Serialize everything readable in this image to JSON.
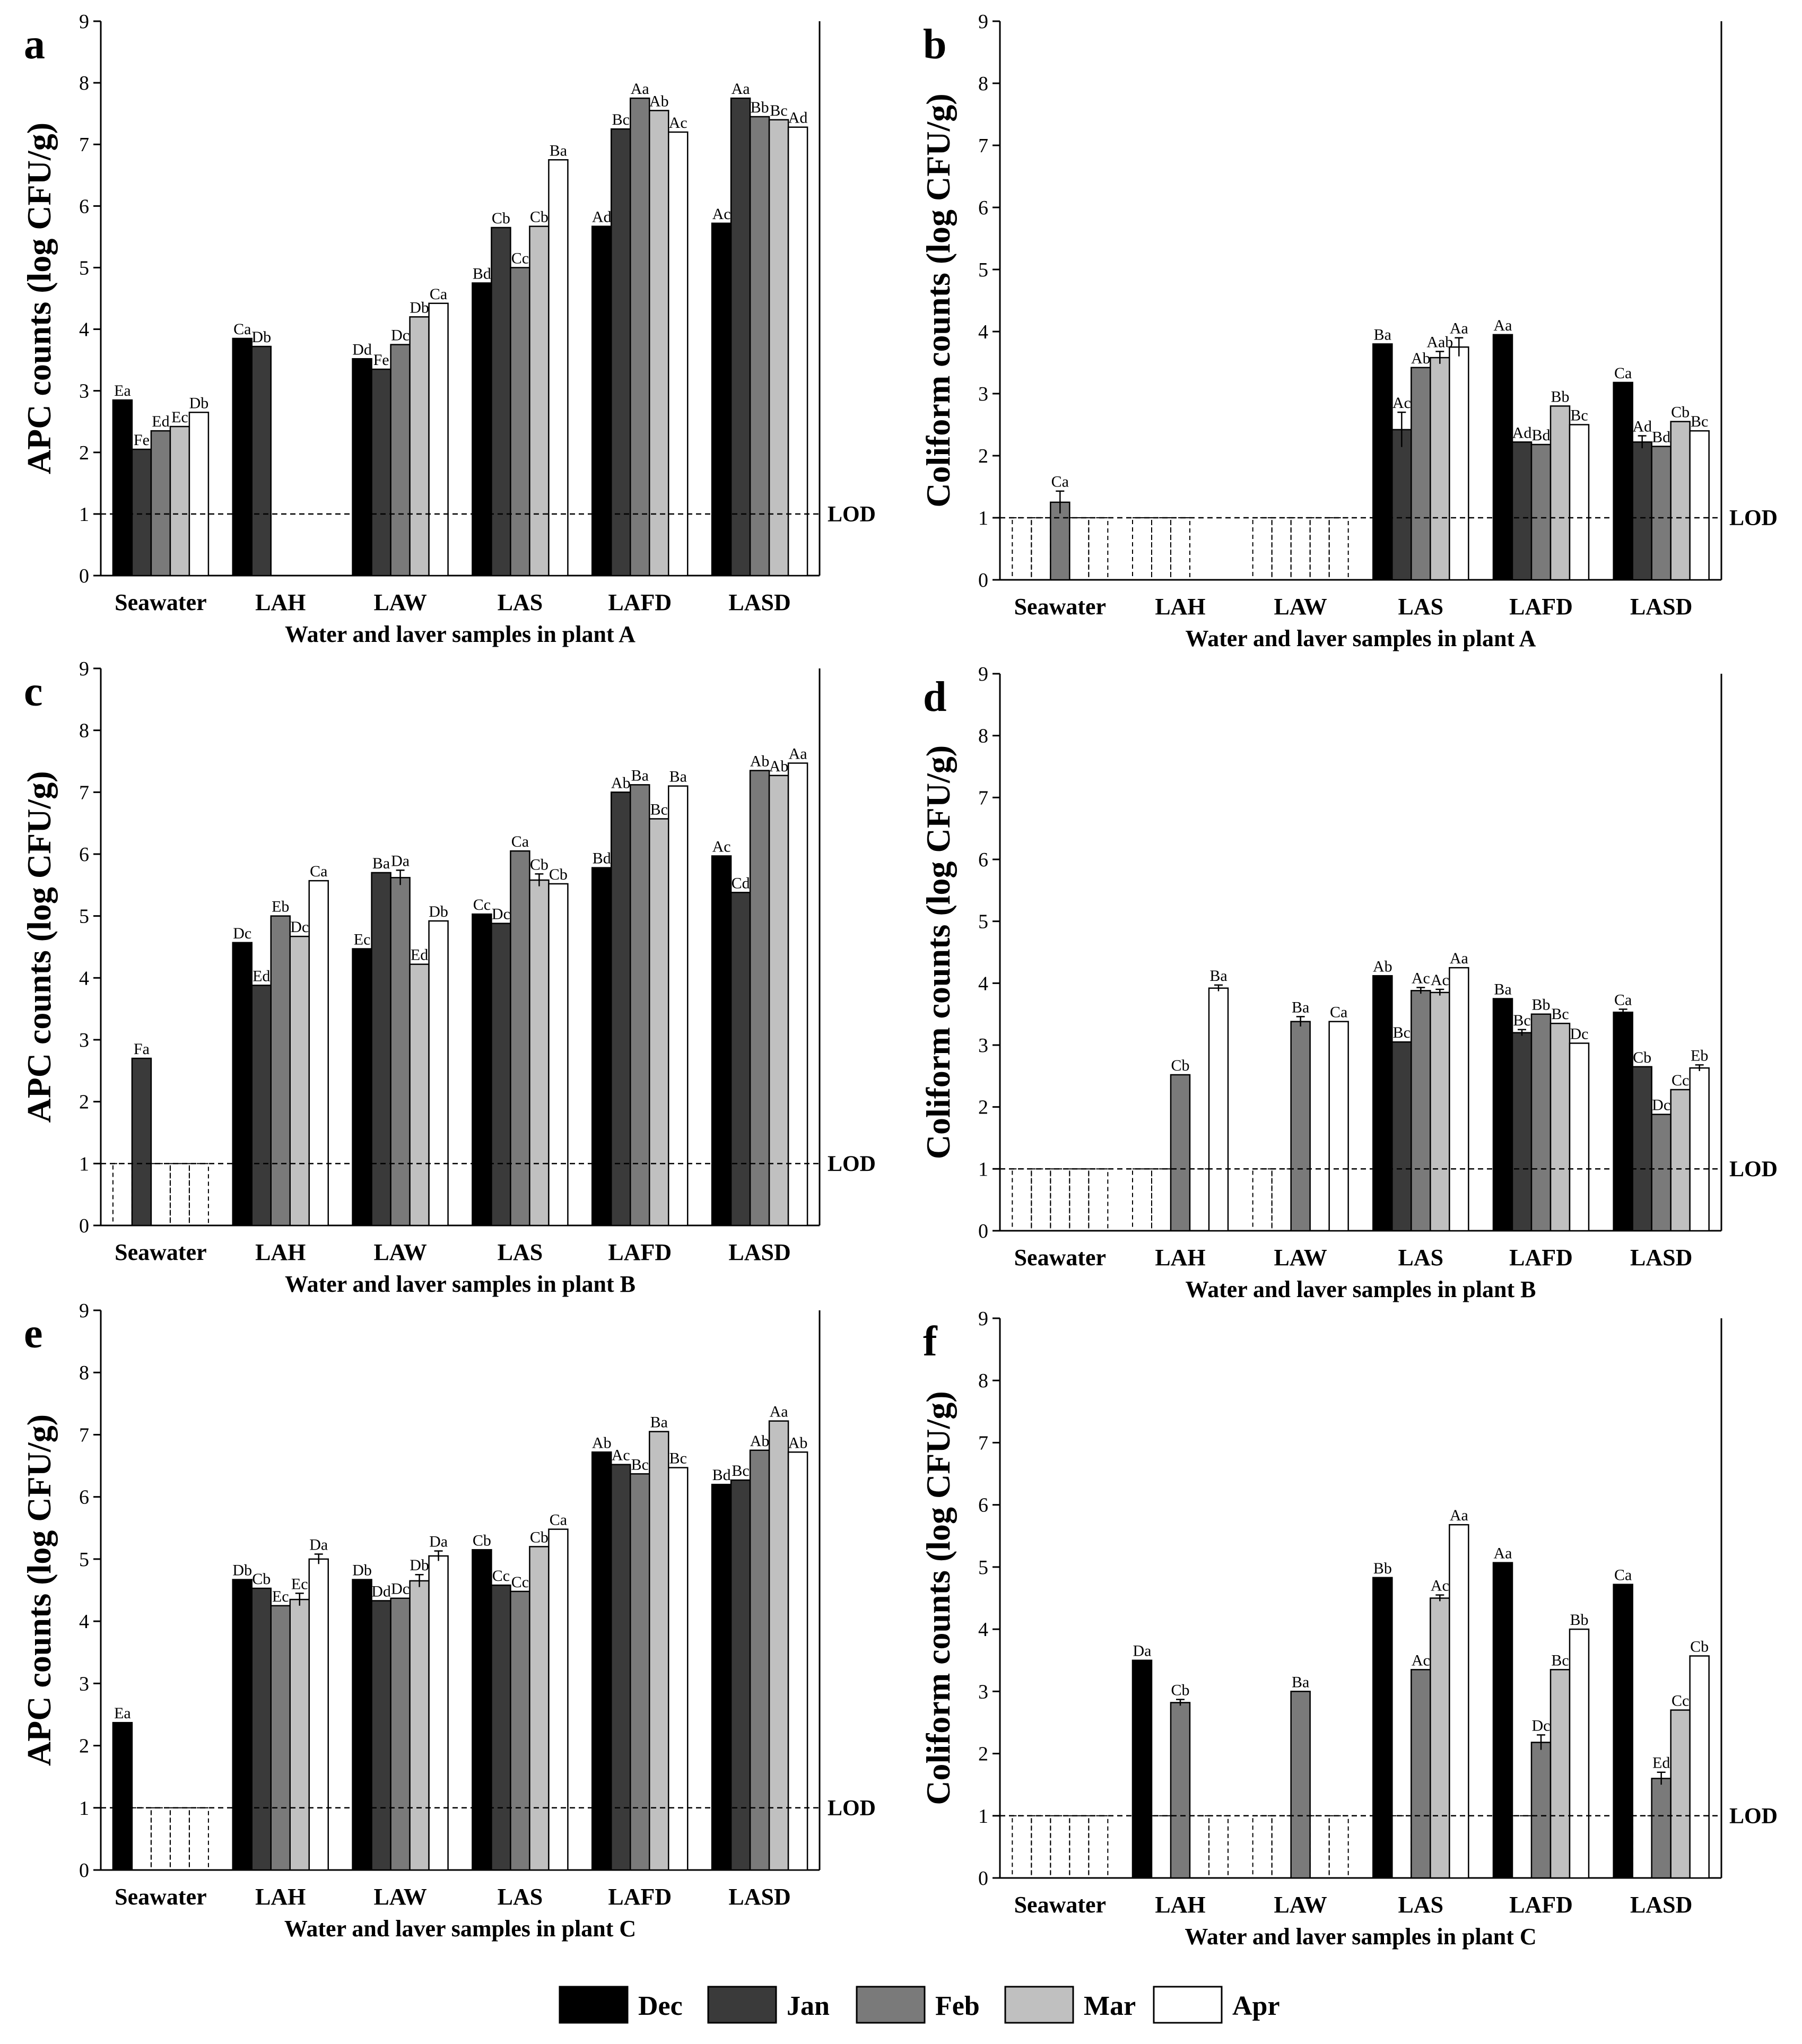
{
  "legend": [
    {
      "name": "Dec",
      "color": "#000000"
    },
    {
      "name": "Jan",
      "color": "#3a3a3a"
    },
    {
      "name": "Feb",
      "color": "#7a7a7a"
    },
    {
      "name": "Mar",
      "color": "#c0c0c0"
    },
    {
      "name": "Apr",
      "color": "#ffffff"
    }
  ],
  "lod_label": "LOD",
  "chart_data": [
    {
      "panel": "a",
      "type": "bar",
      "ylabel": "APC counts (log CFU/g)",
      "xlabel": "Water and laver samples in plant A",
      "ylim": [
        0,
        9
      ],
      "lod": 1,
      "categories": [
        "Seawater",
        "LAH",
        "LAW",
        "LAS",
        "LAFD",
        "LASD"
      ],
      "series_names": [
        "Dec",
        "Jan",
        "Feb",
        "Mar",
        "Apr"
      ],
      "values": [
        [
          2.85,
          2.05,
          2.35,
          2.42,
          2.65
        ],
        [
          3.85,
          3.72,
          null,
          null,
          null
        ],
        [
          3.52,
          3.35,
          3.75,
          4.2,
          4.42
        ],
        [
          4.75,
          5.65,
          5.0,
          5.67,
          6.75
        ],
        [
          5.67,
          7.25,
          7.75,
          7.55,
          7.2
        ],
        [
          5.72,
          7.75,
          7.45,
          7.4,
          7.28
        ]
      ],
      "errors": [
        [
          0,
          0,
          0,
          0,
          0
        ],
        [
          0,
          0,
          0,
          0,
          0
        ],
        [
          0,
          0,
          0,
          0,
          0
        ],
        [
          0,
          0,
          0,
          0,
          0
        ],
        [
          0,
          0,
          0,
          0,
          0
        ],
        [
          0,
          0,
          0,
          0,
          0
        ]
      ],
      "labels": [
        [
          "Ea",
          "Fe",
          "Ed",
          "Ec",
          "Db"
        ],
        [
          "Ca",
          "Db",
          "",
          "",
          ""
        ],
        [
          "Dd",
          "Fe",
          "Dc",
          "Db",
          "Ca"
        ],
        [
          "Bd",
          "Cb",
          "Cc",
          "Cb",
          "Ba"
        ],
        [
          "Ad",
          "Bc",
          "Aa",
          "Ab",
          "Ac"
        ],
        [
          "Ac",
          "Aa",
          "Bb",
          "Bc",
          "Ad"
        ]
      ],
      "below_lod": [
        [
          false,
          false,
          false,
          false,
          false
        ],
        [
          false,
          false,
          false,
          false,
          false
        ],
        [
          false,
          false,
          false,
          false,
          false
        ],
        [
          false,
          false,
          false,
          false,
          false
        ],
        [
          false,
          false,
          false,
          false,
          false
        ],
        [
          false,
          false,
          false,
          false,
          false
        ]
      ]
    },
    {
      "panel": "b",
      "type": "bar",
      "ylabel": "Coliform counts (log CFU/g)",
      "xlabel": "Water and laver samples in plant A",
      "ylim": [
        0,
        9
      ],
      "lod": 1,
      "categories": [
        "Seawater",
        "LAH",
        "LAW",
        "LAS",
        "LAFD",
        "LASD"
      ],
      "series_names": [
        "Dec",
        "Jan",
        "Feb",
        "Mar",
        "Apr"
      ],
      "values": [
        [
          null,
          null,
          1.25,
          null,
          null
        ],
        [
          null,
          null,
          null,
          null,
          null
        ],
        [
          null,
          null,
          null,
          null,
          null
        ],
        [
          3.8,
          2.42,
          3.42,
          3.58,
          3.75
        ],
        [
          3.95,
          2.22,
          2.18,
          2.8,
          2.5
        ],
        [
          3.18,
          2.22,
          2.15,
          2.55,
          2.4
        ]
      ],
      "errors": [
        [
          0,
          0,
          0.18,
          0,
          0
        ],
        [
          0,
          0,
          0,
          0,
          0
        ],
        [
          0,
          0,
          0,
          0,
          0
        ],
        [
          0,
          0.28,
          0,
          0.1,
          0.15
        ],
        [
          0,
          0,
          0,
          0,
          0
        ],
        [
          0,
          0.1,
          0,
          0,
          0
        ]
      ],
      "labels": [
        [
          "",
          "",
          "Ca",
          "",
          ""
        ],
        [
          "",
          "",
          "",
          "",
          ""
        ],
        [
          "",
          "",
          "",
          "",
          ""
        ],
        [
          "Ba",
          "Ac",
          "Ab",
          "Aab",
          "Aa"
        ],
        [
          "Aa",
          "Ad",
          "Bd",
          "Bb",
          "Bc"
        ],
        [
          "Ca",
          "Ad",
          "Bd",
          "Cb",
          "Bc"
        ]
      ],
      "below_lod": [
        [
          true,
          true,
          false,
          true,
          true
        ],
        [
          true,
          true,
          true,
          false,
          false
        ],
        [
          true,
          true,
          true,
          true,
          true
        ],
        [
          false,
          false,
          false,
          false,
          false
        ],
        [
          false,
          false,
          false,
          false,
          false
        ],
        [
          false,
          false,
          false,
          false,
          false
        ]
      ]
    },
    {
      "panel": "c",
      "type": "bar",
      "ylabel": "APC counts (log CFU/g)",
      "xlabel": "Water and laver samples in plant B",
      "ylim": [
        0,
        9
      ],
      "lod": 1,
      "categories": [
        "Seawater",
        "LAH",
        "LAW",
        "LAS",
        "LAFD",
        "LASD"
      ],
      "series_names": [
        "Dec",
        "Jan",
        "Feb",
        "Mar",
        "Apr"
      ],
      "values": [
        [
          null,
          2.7,
          null,
          null,
          null
        ],
        [
          4.57,
          3.88,
          5.0,
          4.67,
          5.57
        ],
        [
          4.47,
          5.7,
          5.62,
          4.22,
          4.92
        ],
        [
          5.03,
          4.88,
          6.05,
          5.58,
          5.52
        ],
        [
          5.78,
          7.0,
          7.12,
          6.57,
          7.1
        ],
        [
          5.97,
          5.38,
          7.35,
          7.27,
          7.47
        ]
      ],
      "errors": [
        [
          0,
          0,
          0,
          0,
          0
        ],
        [
          0,
          0,
          0,
          0,
          0
        ],
        [
          0,
          0,
          0.12,
          0,
          0
        ],
        [
          0,
          0,
          0,
          0.1,
          0
        ],
        [
          0,
          0,
          0,
          0,
          0
        ],
        [
          0,
          0,
          0,
          0,
          0
        ]
      ],
      "labels": [
        [
          "",
          "Fa",
          "",
          "",
          ""
        ],
        [
          "Dc",
          "Ed",
          "Eb",
          "Dc",
          "Ca"
        ],
        [
          "Ec",
          "Ba",
          "Da",
          "Ed",
          "Db"
        ],
        [
          "Cc",
          "Dc",
          "Ca",
          "Cb",
          "Cb"
        ],
        [
          "Bd",
          "Ab",
          "Ba",
          "Bc",
          "Ba"
        ],
        [
          "Ac",
          "Cd",
          "Ab",
          "Ab",
          "Aa"
        ]
      ],
      "below_lod": [
        [
          true,
          false,
          true,
          true,
          true
        ],
        [
          false,
          false,
          false,
          false,
          false
        ],
        [
          false,
          false,
          false,
          false,
          false
        ],
        [
          false,
          false,
          false,
          false,
          false
        ],
        [
          false,
          false,
          false,
          false,
          false
        ],
        [
          false,
          false,
          false,
          false,
          false
        ]
      ]
    },
    {
      "panel": "d",
      "type": "bar",
      "ylabel": "Coliform counts (log CFU/g)",
      "xlabel": "Water and laver samples in plant B",
      "ylim": [
        0,
        9
      ],
      "lod": 1,
      "categories": [
        "Seawater",
        "LAH",
        "LAW",
        "LAS",
        "LAFD",
        "LASD"
      ],
      "series_names": [
        "Dec",
        "Jan",
        "Feb",
        "Mar",
        "Apr"
      ],
      "values": [
        [
          null,
          null,
          null,
          null,
          null
        ],
        [
          null,
          null,
          2.52,
          null,
          3.92
        ],
        [
          null,
          null,
          3.38,
          null,
          3.38
        ],
        [
          4.12,
          3.05,
          3.88,
          3.85,
          4.25
        ],
        [
          3.75,
          3.2,
          3.5,
          3.35,
          3.03
        ],
        [
          3.53,
          2.65,
          1.88,
          2.28,
          2.63
        ]
      ],
      "errors": [
        [
          0,
          0,
          0,
          0,
          0
        ],
        [
          0,
          0,
          0,
          0,
          0.05
        ],
        [
          0,
          0,
          0.08,
          0,
          0
        ],
        [
          0,
          0,
          0.05,
          0.05,
          0
        ],
        [
          0,
          0.05,
          0,
          0,
          0
        ],
        [
          0.05,
          0,
          0,
          0,
          0.05
        ]
      ],
      "labels": [
        [
          "",
          "",
          "",
          "",
          ""
        ],
        [
          "",
          "",
          "Cb",
          "",
          "Ba"
        ],
        [
          "",
          "",
          "Ba",
          "",
          "Ca"
        ],
        [
          "Ab",
          "Bc",
          "Ac",
          "Ac",
          "Aa"
        ],
        [
          "Ba",
          "Bc",
          "Bb",
          "Bc",
          "Dc"
        ],
        [
          "Ca",
          "Cb",
          "Dc",
          "Cc",
          "Eb"
        ]
      ],
      "below_lod": [
        [
          true,
          true,
          true,
          true,
          true
        ],
        [
          true,
          true,
          false,
          true,
          false
        ],
        [
          true,
          true,
          false,
          false,
          false
        ],
        [
          false,
          false,
          false,
          false,
          false
        ],
        [
          false,
          false,
          false,
          false,
          false
        ],
        [
          false,
          false,
          false,
          false,
          false
        ]
      ]
    },
    {
      "panel": "e",
      "type": "bar",
      "ylabel": "APC counts (log CFU/g)",
      "xlabel": "Water and laver samples in plant C",
      "ylim": [
        0,
        9
      ],
      "lod": 1,
      "categories": [
        "Seawater",
        "LAH",
        "LAW",
        "LAS",
        "LAFD",
        "LASD"
      ],
      "series_names": [
        "Dec",
        "Jan",
        "Feb",
        "Mar",
        "Apr"
      ],
      "values": [
        [
          2.37,
          null,
          null,
          null,
          null
        ],
        [
          4.67,
          4.53,
          4.25,
          4.35,
          5.0
        ],
        [
          4.67,
          4.33,
          4.37,
          4.65,
          5.05
        ],
        [
          5.15,
          4.58,
          4.48,
          5.2,
          5.48
        ],
        [
          6.72,
          6.52,
          6.37,
          7.05,
          6.47
        ],
        [
          6.2,
          6.27,
          6.75,
          7.22,
          6.72
        ]
      ],
      "errors": [
        [
          0,
          0,
          0,
          0,
          0
        ],
        [
          0,
          0,
          0,
          0.1,
          0.08
        ],
        [
          0,
          0,
          0,
          0.1,
          0.08
        ],
        [
          0,
          0,
          0,
          0,
          0
        ],
        [
          0,
          0,
          0,
          0,
          0
        ],
        [
          0,
          0,
          0,
          0,
          0
        ]
      ],
      "labels": [
        [
          "Ea",
          "",
          "",
          "",
          ""
        ],
        [
          "Db",
          "Cb",
          "Ec",
          "Ec",
          "Da"
        ],
        [
          "Db",
          "Dd",
          "Dc",
          "Db",
          "Da"
        ],
        [
          "Cb",
          "Cc",
          "Cc",
          "Cb",
          "Ca"
        ],
        [
          "Ab",
          "Ac",
          "Bc",
          "Ba",
          "Bc"
        ],
        [
          "Bd",
          "Bc",
          "Ab",
          "Aa",
          "Ab"
        ]
      ],
      "below_lod": [
        [
          false,
          true,
          true,
          true,
          true
        ],
        [
          false,
          false,
          false,
          false,
          false
        ],
        [
          false,
          false,
          false,
          false,
          false
        ],
        [
          false,
          false,
          false,
          false,
          false
        ],
        [
          false,
          false,
          false,
          false,
          false
        ],
        [
          false,
          false,
          false,
          false,
          false
        ]
      ]
    },
    {
      "panel": "f",
      "type": "bar",
      "ylabel": "Coliform counts (log CFU/g)",
      "xlabel": "Water and laver samples in plant C",
      "ylim": [
        0,
        9
      ],
      "lod": 1,
      "categories": [
        "Seawater",
        "LAH",
        "LAW",
        "LAS",
        "LAFD",
        "LASD"
      ],
      "series_names": [
        "Dec",
        "Jan",
        "Feb",
        "Mar",
        "Apr"
      ],
      "values": [
        [
          null,
          null,
          null,
          null,
          null
        ],
        [
          3.5,
          null,
          2.82,
          null,
          null
        ],
        [
          null,
          null,
          3.0,
          null,
          null
        ],
        [
          4.83,
          null,
          3.35,
          4.5,
          5.68
        ],
        [
          5.07,
          null,
          2.18,
          3.35,
          4.0
        ],
        [
          4.72,
          null,
          1.6,
          2.7,
          3.57
        ]
      ],
      "errors": [
        [
          0,
          0,
          0,
          0,
          0
        ],
        [
          0,
          0,
          0.05,
          0,
          0
        ],
        [
          0,
          0,
          0,
          0,
          0
        ],
        [
          0,
          0,
          0,
          0.05,
          0
        ],
        [
          0,
          0,
          0.12,
          0,
          0
        ],
        [
          0,
          0,
          0.1,
          0,
          0
        ]
      ],
      "labels": [
        [
          "",
          "",
          "",
          "",
          ""
        ],
        [
          "Da",
          "",
          "Cb",
          "",
          ""
        ],
        [
          "",
          "",
          "Ba",
          "",
          ""
        ],
        [
          "Bb",
          "",
          "Ac",
          "Ac",
          "Aa"
        ],
        [
          "Aa",
          "",
          "Dc",
          "Bc",
          "Bb"
        ],
        [
          "Ca",
          "",
          "Ed",
          "Cc",
          "Cb"
        ]
      ],
      "below_lod": [
        [
          true,
          true,
          true,
          true,
          true
        ],
        [
          false,
          true,
          false,
          true,
          true
        ],
        [
          true,
          true,
          false,
          true,
          true
        ],
        [
          false,
          true,
          false,
          false,
          false
        ],
        [
          false,
          true,
          false,
          false,
          false
        ],
        [
          false,
          true,
          false,
          false,
          false
        ]
      ]
    }
  ]
}
